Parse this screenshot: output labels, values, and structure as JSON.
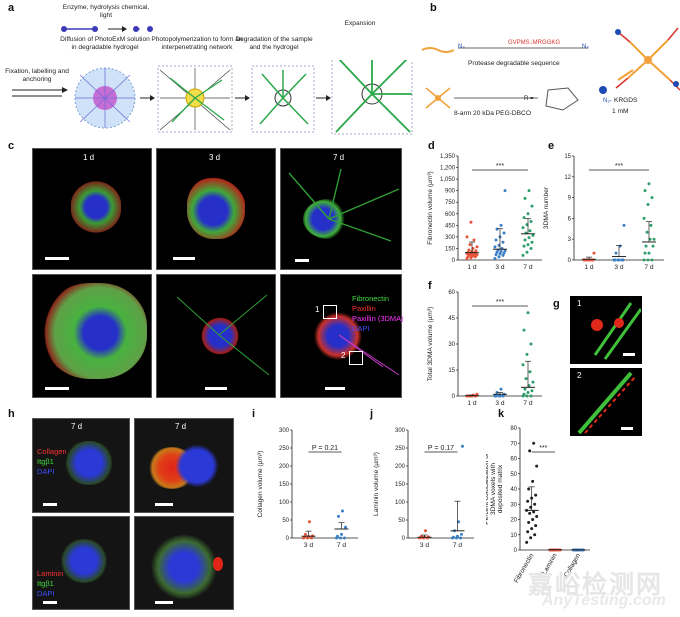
{
  "panel_labels": {
    "a": "a",
    "b": "b",
    "c": "c",
    "d": "d",
    "e": "e",
    "f": "f",
    "g": "g",
    "h": "h",
    "i": "i",
    "j": "j",
    "k": "k"
  },
  "panel_a": {
    "enzyme_text": "Enzyme, hydrolysis chemical, light",
    "diffusion_text": "Diffusion of PhotoExM solution in degradable hydrogel",
    "photopoly_text": "Photopolymerization to form an interpenetrating network",
    "degradation_text": "Degradation of the sample and the hydrogel",
    "expansion_text": "Expansion",
    "fixation_text": "Fixation, labelling and anchoring"
  },
  "panel_b": {
    "peptide_left": "N₃",
    "peptide_seq": "GVPMS↓MRGGKG",
    "peptide_right": "N₃",
    "protease_text": "Protease degradable sequence",
    "peg_text": "8-arm 20 kDa PEG-DBCO",
    "r_label": "R =",
    "krgds": "KRGDS",
    "n3": "N₃-",
    "conc": "1 mM"
  },
  "panel_c": {
    "day_labels": [
      "1 d",
      "3 d",
      "7 d"
    ],
    "legend": [
      "Fibronectin",
      "Paxillin",
      "Paxillin (3DMA)",
      "DAPI"
    ],
    "legend_colors": [
      "#3fdc3f",
      "#ff3333",
      "#ff33ff",
      "#3f4dff"
    ],
    "inset_labels": [
      "1",
      "2"
    ]
  },
  "panel_g": {
    "labels": [
      "1",
      "2"
    ]
  },
  "panel_h": {
    "day_labels": [
      "7 d",
      "7 d"
    ],
    "legend_top": [
      "Collagen",
      "Itgβ1",
      "DAPI"
    ],
    "legend_bottom": [
      "Laminin",
      "Itgβ1",
      "DAPI"
    ],
    "colors": {
      "red": "#ff3333",
      "green": "#3fdc3f",
      "blue": "#3f4dff"
    }
  },
  "chart_data": [
    {
      "id": "d",
      "type": "scatter",
      "ylabel": "Fibronectin volume (µm³)",
      "categories": [
        "1 d",
        "3 d",
        "7 d"
      ],
      "yticks": [
        "0",
        "150",
        "300",
        "450",
        "600",
        "750",
        "900",
        "1,050",
        "1,200",
        "1,350"
      ],
      "ylim": [
        0,
        1350
      ],
      "significance": "***",
      "colors": [
        "#e8543a",
        "#3b7fc4",
        "#2e9e6a"
      ],
      "series": [
        {
          "name": "1 d",
          "mean": 95,
          "values": [
            20,
            30,
            40,
            45,
            50,
            55,
            60,
            65,
            70,
            75,
            80,
            85,
            90,
            95,
            100,
            110,
            120,
            130,
            150,
            170,
            200,
            260,
            300,
            490
          ]
        },
        {
          "name": "3 d",
          "mean": 140,
          "values": [
            20,
            40,
            60,
            70,
            80,
            90,
            100,
            110,
            120,
            130,
            150,
            170,
            190,
            230,
            260,
            300,
            350,
            400,
            450,
            900
          ]
        },
        {
          "name": "7 d",
          "mean": 340,
          "values": [
            60,
            100,
            150,
            180,
            200,
            230,
            260,
            290,
            320,
            350,
            380,
            420,
            460,
            500,
            550,
            600,
            700,
            800,
            900
          ]
        }
      ]
    },
    {
      "id": "e",
      "type": "scatter",
      "ylabel": "3DMA number",
      "categories": [
        "1 d",
        "3 d",
        "7 d"
      ],
      "yticks": [
        "0",
        "3",
        "6",
        "9",
        "12",
        "15"
      ],
      "ylim": [
        0,
        15
      ],
      "significance": "***",
      "colors": [
        "#e8543a",
        "#3b7fc4",
        "#2e9e6a"
      ],
      "series": [
        {
          "name": "1 d",
          "mean": 0.1,
          "values": [
            0,
            0,
            0,
            0,
            0,
            0,
            0,
            0,
            1
          ]
        },
        {
          "name": "3 d",
          "mean": 0.5,
          "values": [
            0,
            0,
            0,
            0,
            0,
            0,
            1,
            2,
            5
          ]
        },
        {
          "name": "7 d",
          "mean": 2.6,
          "values": [
            0,
            0,
            0,
            1,
            1,
            2,
            2,
            3,
            3,
            4,
            5,
            6,
            8,
            9,
            10,
            11
          ]
        }
      ]
    },
    {
      "id": "f",
      "type": "scatter",
      "ylabel": "Total 3DMA volume (µm³)",
      "categories": [
        "1 d",
        "3 d",
        "7 d"
      ],
      "yticks": [
        "0",
        "15",
        "30",
        "45",
        "60"
      ],
      "ylim": [
        0,
        60
      ],
      "significance": "***",
      "colors": [
        "#e8543a",
        "#3b7fc4",
        "#2e9e6a"
      ],
      "series": [
        {
          "name": "1 d",
          "mean": 0.2,
          "values": [
            0,
            0,
            0,
            0,
            0,
            0,
            0,
            0.5,
            1
          ]
        },
        {
          "name": "3 d",
          "mean": 1,
          "values": [
            0,
            0,
            0,
            0,
            0,
            1,
            2,
            4
          ]
        },
        {
          "name": "7 d",
          "mean": 5,
          "values": [
            0,
            0,
            0,
            1,
            2,
            3,
            4,
            6,
            8,
            10,
            14,
            18,
            24,
            30,
            38,
            48
          ]
        }
      ]
    },
    {
      "id": "i",
      "type": "scatter",
      "ylabel": "Collagen volume (µm³)",
      "categories": [
        "3 d",
        "7 d"
      ],
      "yticks": [
        "0",
        "50",
        "100",
        "150",
        "200",
        "250",
        "300"
      ],
      "ylim": [
        0,
        300
      ],
      "significance": "P = 0.21",
      "colors": [
        "#e8543a",
        "#3b7fc4"
      ],
      "series": [
        {
          "name": "3 d",
          "mean": 5,
          "values": [
            0,
            0,
            0,
            2,
            4,
            6,
            10,
            45
          ]
        },
        {
          "name": "7 d",
          "mean": 25,
          "values": [
            0,
            0,
            0,
            5,
            10,
            30,
            60,
            75
          ]
        }
      ]
    },
    {
      "id": "j",
      "type": "scatter",
      "ylabel": "Laminin volume (µm³)",
      "categories": [
        "3 d",
        "7 d"
      ],
      "yticks": [
        "0",
        "50",
        "100",
        "150",
        "200",
        "250",
        "300"
      ],
      "ylim": [
        0,
        300
      ],
      "significance": "P = 0.17",
      "colors": [
        "#e8543a",
        "#3b7fc4"
      ],
      "series": [
        {
          "name": "3 d",
          "mean": 2,
          "values": [
            0,
            0,
            0,
            1,
            2,
            3,
            5,
            20
          ]
        },
        {
          "name": "7 d",
          "mean": 20,
          "values": [
            0,
            0,
            0,
            2,
            5,
            10,
            20,
            45,
            255
          ]
        }
      ]
    },
    {
      "id": "k",
      "type": "scatter",
      "ylabel": "Percent colocalization of 3DMA voxels with deposited matrix",
      "categories": [
        "Fibronectin",
        "Laminin",
        "Collagen"
      ],
      "yticks": [
        "0",
        "10",
        "20",
        "30",
        "40",
        "50",
        "60",
        "70",
        "80"
      ],
      "ylim": [
        0,
        80
      ],
      "significance": "***",
      "colors": [
        "#222222",
        "#e8543a",
        "#3b7fc4"
      ],
      "series": [
        {
          "name": "Fibronectin",
          "mean": 26,
          "values": [
            5,
            8,
            10,
            12,
            14,
            16,
            18,
            20,
            22,
            24,
            25,
            26,
            28,
            30,
            32,
            34,
            36,
            40,
            45,
            55,
            65,
            70
          ]
        },
        {
          "name": "Laminin",
          "mean": 0.2,
          "values": [
            0,
            0,
            0,
            0,
            0,
            0,
            0,
            0,
            0,
            0
          ]
        },
        {
          "name": "Collagen",
          "mean": 0.1,
          "values": [
            0,
            0,
            0,
            0,
            0,
            0,
            0,
            0,
            0,
            0
          ]
        }
      ]
    }
  ],
  "watermark": {
    "cn": "嘉峪检测网",
    "en": "AnyTesting.com"
  }
}
